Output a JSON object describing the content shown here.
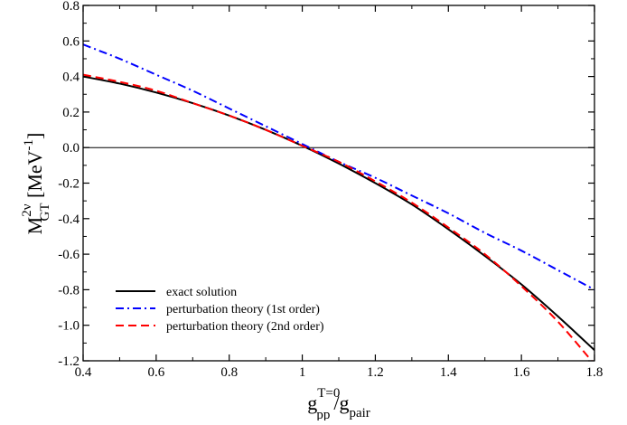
{
  "chart_data": {
    "type": "line",
    "title": "",
    "xlabel": {
      "base": "g",
      "sup": "T=0",
      "sub": "pp",
      "slash": "/",
      "base2": "g",
      "sub2": "pair"
    },
    "ylabel": {
      "base": "M",
      "sup": "2ν",
      "sub": "GT",
      "unit_open": " [MeV",
      "unit_sup": "-1",
      "unit_close": "]"
    },
    "xlim": [
      0.4,
      1.8
    ],
    "ylim": [
      -1.2,
      0.8
    ],
    "xticks": [
      "0.4",
      "0.6",
      "0.8",
      "1",
      "1.2",
      "1.4",
      "1.6",
      "1.8"
    ],
    "yticks": [
      "-1.2",
      "-1.0",
      "-0.8",
      "-0.6",
      "-0.4",
      "-0.2",
      "0.0",
      "0.2",
      "0.4",
      "0.6",
      "0.8"
    ],
    "grid": false,
    "zero_line": true,
    "legend_position": "bottom-left",
    "series": [
      {
        "name": "exact solution",
        "color": "#000000",
        "dash": "solid",
        "x": [
          0.4,
          0.5,
          0.6,
          0.7,
          0.8,
          0.9,
          1.0,
          1.1,
          1.2,
          1.3,
          1.4,
          1.5,
          1.6,
          1.7,
          1.8
        ],
        "y": [
          0.4,
          0.36,
          0.31,
          0.25,
          0.18,
          0.1,
          0.01,
          -0.09,
          -0.2,
          -0.32,
          -0.46,
          -0.61,
          -0.77,
          -0.95,
          -1.14
        ]
      },
      {
        "name": "perturbation theory (1st order)",
        "color": "#0000ff",
        "dash": "dashdot",
        "x": [
          0.4,
          0.5,
          0.6,
          0.7,
          0.8,
          0.9,
          1.0,
          1.1,
          1.2,
          1.3,
          1.4,
          1.5,
          1.6,
          1.7,
          1.8
        ],
        "y": [
          0.58,
          0.5,
          0.41,
          0.32,
          0.22,
          0.12,
          0.02,
          -0.08,
          -0.17,
          -0.27,
          -0.37,
          -0.48,
          -0.58,
          -0.69,
          -0.8
        ]
      },
      {
        "name": "perturbation theory (2nd order)",
        "color": "#ff0000",
        "dash": "dashed",
        "x": [
          0.4,
          0.5,
          0.6,
          0.7,
          0.8,
          0.9,
          1.0,
          1.1,
          1.2,
          1.3,
          1.4,
          1.5,
          1.6,
          1.7,
          1.8
        ],
        "y": [
          0.41,
          0.37,
          0.32,
          0.25,
          0.18,
          0.1,
          0.01,
          -0.08,
          -0.19,
          -0.31,
          -0.45,
          -0.6,
          -0.78,
          -0.98,
          -1.22
        ]
      }
    ]
  }
}
